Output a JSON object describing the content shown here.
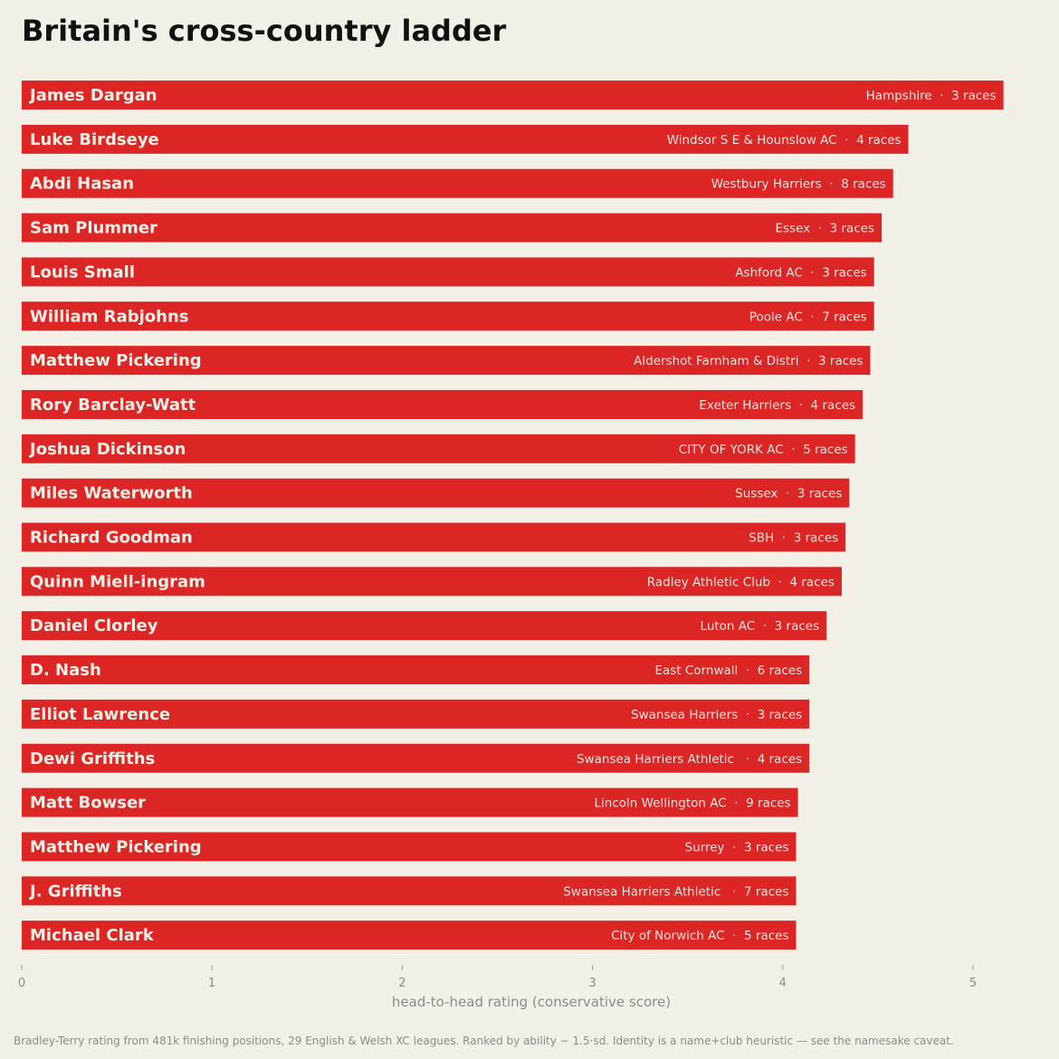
{
  "chart_data": {
    "type": "bar",
    "orientation": "horizontal",
    "title": "Britain's cross-country ladder",
    "xlabel": "head-to-head rating  (conservative score)",
    "xlim": [
      0,
      5.3
    ],
    "xticks": [
      0,
      1,
      2,
      3,
      4,
      5
    ],
    "grid": false,
    "bar_color": "#dc2626",
    "bars": [
      {
        "name": "James Dargan",
        "club": "Hampshire",
        "races": "3 races",
        "value": 5.16
      },
      {
        "name": "Luke Birdseye",
        "club": "Windsor S E & Hounslow AC",
        "races": "4 races",
        "value": 4.66
      },
      {
        "name": "Abdi Hasan",
        "club": "Westbury Harriers",
        "races": "8 races",
        "value": 4.58
      },
      {
        "name": "Sam Plummer",
        "club": "Essex",
        "races": "3 races",
        "value": 4.52
      },
      {
        "name": "Louis Small",
        "club": "Ashford AC",
        "races": "3 races",
        "value": 4.48
      },
      {
        "name": "William Rabjohns",
        "club": "Poole AC",
        "races": "7 races",
        "value": 4.48
      },
      {
        "name": "Matthew Pickering",
        "club": "Aldershot Farnham & Distri",
        "races": "3 races",
        "value": 4.46
      },
      {
        "name": "Rory Barclay-Watt",
        "club": "Exeter Harriers",
        "races": "4 races",
        "value": 4.42
      },
      {
        "name": "Joshua Dickinson",
        "club": "CITY OF YORK AC",
        "races": "5 races",
        "value": 4.38
      },
      {
        "name": "Miles Waterworth",
        "club": "Sussex",
        "races": "3 races",
        "value": 4.35
      },
      {
        "name": "Richard Goodman",
        "club": "SBH",
        "races": "3 races",
        "value": 4.33
      },
      {
        "name": "Quinn Miell-ingram",
        "club": "Radley Athletic Club",
        "races": "4 races",
        "value": 4.31
      },
      {
        "name": "Daniel Clorley",
        "club": "Luton AC",
        "races": "3 races",
        "value": 4.23
      },
      {
        "name": "D. Nash",
        "club": "East Cornwall",
        "races": "6 races",
        "value": 4.14
      },
      {
        "name": "Elliot Lawrence",
        "club": "Swansea Harriers",
        "races": "3 races",
        "value": 4.14
      },
      {
        "name": "Dewi Griffiths",
        "club": "Swansea Harriers Athletic ",
        "races": "4 races",
        "value": 4.14
      },
      {
        "name": "Matt Bowser",
        "club": "Lincoln Wellington AC",
        "races": "9 races",
        "value": 4.08
      },
      {
        "name": "Matthew Pickering",
        "club": "Surrey",
        "races": "3 races",
        "value": 4.07
      },
      {
        "name": "J. Griffiths",
        "club": "Swansea Harriers Athletic ",
        "races": "7 races",
        "value": 4.07
      },
      {
        "name": "Michael Clark",
        "club": "City of Norwich AC",
        "races": "5 races",
        "value": 4.07
      }
    ],
    "footnote": "Bradley-Terry rating from 481k finishing positions, 29 English & Welsh XC leagues. Ranked by ability − 1.5·sd. Identity is a name+club heuristic — see the namesake caveat."
  }
}
